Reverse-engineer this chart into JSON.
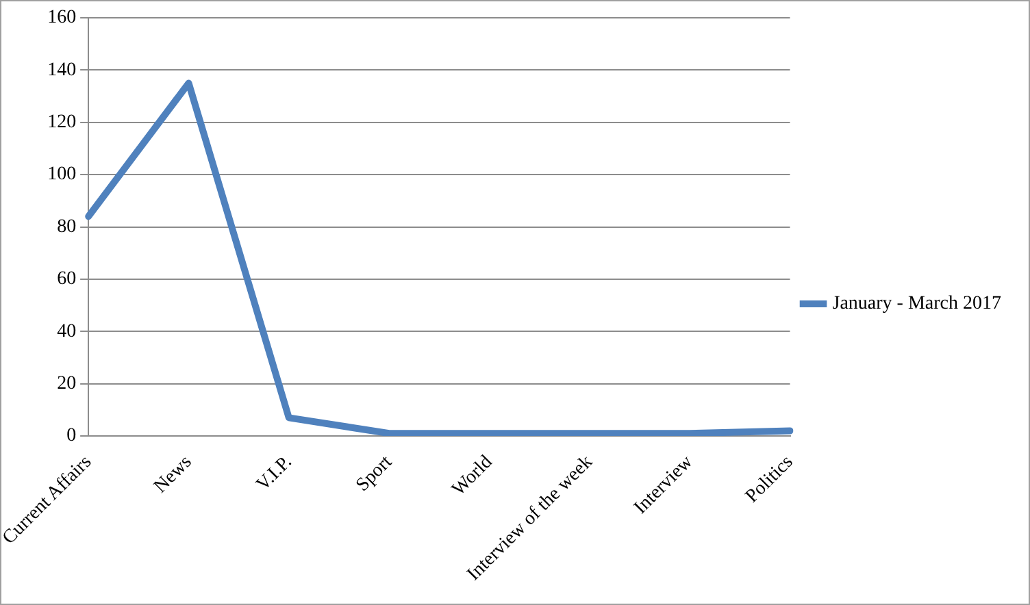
{
  "chart_data": {
    "type": "line",
    "categories": [
      "Current Affairs",
      "News",
      "V.I.P.",
      "Sport",
      "World",
      "Interview of the week",
      "Interview",
      "Politics"
    ],
    "series": [
      {
        "name": "January - March 2017",
        "color": "#4f81bd",
        "values": [
          84,
          135,
          7,
          1,
          1,
          1,
          1,
          2
        ]
      }
    ],
    "ylim": [
      0,
      160
    ],
    "yticks": [
      0,
      20,
      40,
      60,
      80,
      100,
      120,
      140,
      160
    ],
    "grid": "y",
    "legend": "right",
    "marker": "none",
    "line_style": "solid"
  }
}
